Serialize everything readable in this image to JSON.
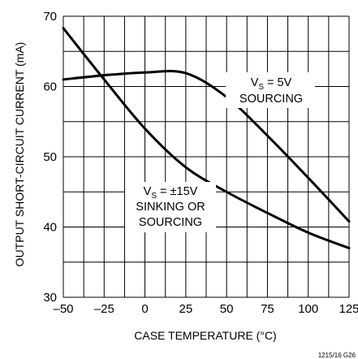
{
  "chart_data": {
    "type": "line",
    "xlabel": "CASE TEMPERATURE (°C)",
    "ylabel": "OUTPUT SHORT-CIRCUIT CURRENT (mA)",
    "xlim": [
      -50,
      125
    ],
    "ylim": [
      30,
      70
    ],
    "x_ticks": [
      "–50",
      "–25",
      "0",
      "25",
      "50",
      "75",
      "100",
      "125"
    ],
    "y_ticks": [
      "30",
      "40",
      "50",
      "60",
      "70"
    ],
    "grid": true,
    "series": [
      {
        "name": "VS = 5V SOURCING",
        "x": [
          -50,
          -25,
          0,
          25,
          50,
          75,
          100,
          125
        ],
        "y": [
          61.0,
          61.6,
          62.0,
          61.9,
          58.5,
          53.0,
          47.0,
          40.8
        ]
      },
      {
        "name": "VS = ±15V SINKING OR SOURCING",
        "x": [
          -50,
          -25,
          0,
          25,
          50,
          75,
          100,
          125
        ],
        "y": [
          68.3,
          61.0,
          54.0,
          48.5,
          45.0,
          42.0,
          39.2,
          37.0
        ]
      }
    ],
    "annotations": {
      "a1_main": "V",
      "a1_sub": "S",
      "a1_rest": " = 5V",
      "a1_line2": "SOURCING",
      "a2_main": "V",
      "a2_sub": "S",
      "a2_rest": " = ±15V",
      "a2_line2": "SINKING OR",
      "a2_line3": "SOURCING"
    },
    "figure_code": "1215/16 G26"
  }
}
